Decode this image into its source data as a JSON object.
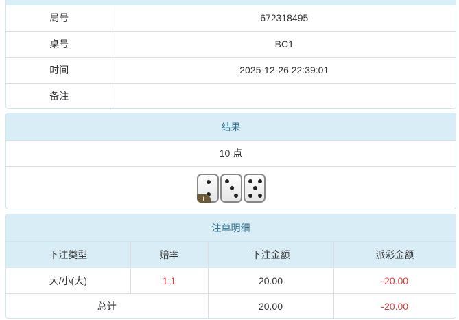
{
  "info": {
    "rows": [
      {
        "label": "局号",
        "value": "672318495"
      },
      {
        "label": "桌号",
        "value": "BC1"
      },
      {
        "label": "时间",
        "value": "2025-12-26 22:39:01"
      },
      {
        "label": "备注",
        "value": ""
      }
    ]
  },
  "result": {
    "title": "结果",
    "points": "10 点",
    "dice": [
      2,
      3,
      5
    ],
    "info_badge": "i"
  },
  "bets": {
    "title": "注单明细",
    "headers": [
      "下注类型",
      "赔率",
      "下注金额",
      "派彩金额"
    ],
    "rows": [
      {
        "type": "大/小(大)",
        "odds": "1:1",
        "amount": "20.00",
        "payout": "-20.00"
      }
    ],
    "total": {
      "label": "总计",
      "amount": "20.00",
      "payout": "-20.00"
    }
  },
  "colors": {
    "header_bg": "#d8edf5",
    "header_text": "#31708f",
    "negative": "#e4393c"
  }
}
